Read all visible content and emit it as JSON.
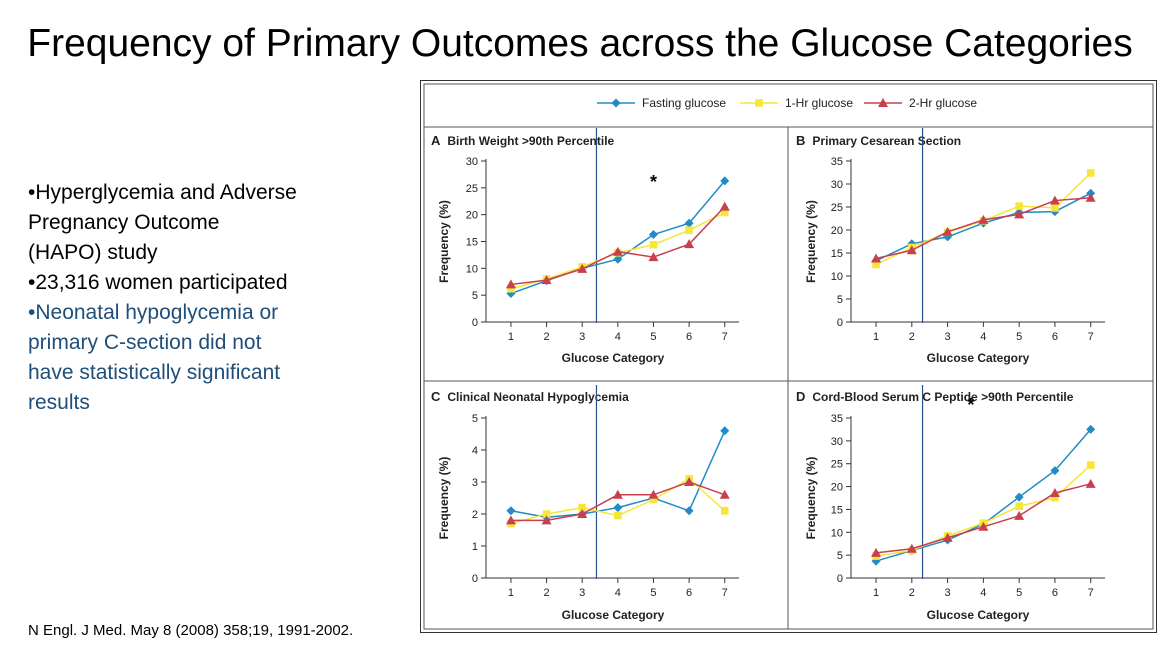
{
  "slide": {
    "title": "Frequency of Primary Outcomes across the Glucose Categories",
    "bullets": [
      "•Hyperglycemia and Adverse Pregnancy Outcome (HAPO) study",
      "•23,316 women participated",
      "•Neonatal hypoglycemia or primary C-section did not have statistically significant results"
    ],
    "citation": "N Engl. J Med. May 8 (2008) 358;19, 1991-2002."
  },
  "colors": {
    "fasting": "#1f8bc7",
    "one_hr": "#f5e638",
    "two_hr": "#c8404c",
    "vline": "#2b4f8c"
  },
  "legend": [
    {
      "name": "Fasting glucose",
      "marker": "diamond"
    },
    {
      "name": "1-Hr glucose",
      "marker": "square"
    },
    {
      "name": "2-Hr glucose",
      "marker": "triangle"
    }
  ],
  "chart_data": [
    {
      "type": "line",
      "panel_letter": "A",
      "title": "Birth Weight >90th Percentile",
      "xlabel": "Glucose Category",
      "ylabel": "Frequency (%)",
      "x": [
        1,
        2,
        3,
        4,
        5,
        6,
        7
      ],
      "ylim": [
        0,
        30
      ],
      "yticks": [
        0,
        5,
        10,
        15,
        20,
        25,
        30
      ],
      "vline_x": 3.4,
      "annotation": "*",
      "annotation_at": [
        5,
        25
      ],
      "series": [
        {
          "name": "Fasting glucose",
          "values": [
            5.3,
            7.7,
            10.0,
            11.7,
            16.3,
            18.4,
            26.3
          ]
        },
        {
          "name": "1-Hr glucose",
          "values": [
            6.2,
            8.0,
            10.3,
            12.9,
            14.4,
            17.1,
            20.4
          ]
        },
        {
          "name": "2-Hr glucose",
          "values": [
            7.0,
            7.8,
            9.9,
            13.1,
            12.1,
            14.5,
            21.5
          ]
        }
      ]
    },
    {
      "type": "line",
      "panel_letter": "B",
      "title": "Primary Cesarean Section",
      "xlabel": "Glucose Category",
      "ylabel": "Frequency (%)",
      "x": [
        1,
        2,
        3,
        4,
        5,
        6,
        7
      ],
      "ylim": [
        0,
        35
      ],
      "yticks": [
        0,
        5,
        10,
        15,
        20,
        25,
        30,
        35
      ],
      "vline_x": 2.3,
      "series": [
        {
          "name": "Fasting glucose",
          "values": [
            13.3,
            17.0,
            18.5,
            21.5,
            23.8,
            24.0,
            28.0
          ]
        },
        {
          "name": "1-Hr glucose",
          "values": [
            12.5,
            16.2,
            19.5,
            22.0,
            25.2,
            24.8,
            32.4
          ]
        },
        {
          "name": "2-Hr glucose",
          "values": [
            13.8,
            15.6,
            19.6,
            22.2,
            23.4,
            26.4,
            27.0
          ]
        }
      ]
    },
    {
      "type": "line",
      "panel_letter": "C",
      "title": "Clinical Neonatal Hypoglycemia",
      "xlabel": "Glucose Category",
      "ylabel": "Frequency (%)",
      "x": [
        1,
        2,
        3,
        4,
        5,
        6,
        7
      ],
      "ylim": [
        0,
        5
      ],
      "yticks": [
        0,
        1,
        2,
        3,
        4,
        5
      ],
      "vline_x": 3.4,
      "series": [
        {
          "name": "Fasting glucose",
          "values": [
            2.1,
            1.9,
            2.0,
            2.2,
            2.5,
            2.1,
            4.6
          ]
        },
        {
          "name": "1-Hr glucose",
          "values": [
            1.7,
            2.0,
            2.2,
            1.95,
            2.45,
            3.1,
            2.1
          ]
        },
        {
          "name": "2-Hr glucose",
          "values": [
            1.8,
            1.8,
            2.0,
            2.6,
            2.6,
            3.0,
            2.6
          ]
        }
      ]
    },
    {
      "type": "line",
      "panel_letter": "D",
      "title": "Cord-Blood Serum C Peptide >90th Percentile",
      "xlabel": "Glucose Category",
      "ylabel": "Frequency (%)",
      "x": [
        1,
        2,
        3,
        4,
        5,
        6,
        7
      ],
      "ylim": [
        0,
        35
      ],
      "yticks": [
        0,
        5,
        10,
        15,
        20,
        25,
        30,
        35
      ],
      "vline_x": 2.3,
      "annotation": "*",
      "annotation_at": [
        3.65,
        36.5
      ],
      "series": [
        {
          "name": "Fasting glucose",
          "values": [
            3.7,
            6.0,
            8.3,
            11.8,
            17.7,
            23.5,
            32.5
          ]
        },
        {
          "name": "1-Hr glucose",
          "values": [
            4.8,
            6.0,
            9.2,
            12.0,
            15.7,
            17.6,
            24.7
          ]
        },
        {
          "name": "2-Hr glucose",
          "values": [
            5.5,
            6.4,
            8.8,
            11.2,
            13.6,
            18.6,
            20.6
          ]
        }
      ]
    }
  ]
}
